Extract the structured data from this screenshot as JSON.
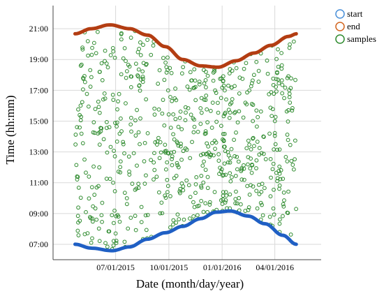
{
  "chart_data": {
    "type": "scatter",
    "title": "",
    "xlabel": "Date (month/day/year)",
    "ylabel": "Time (hh:mm)",
    "xlim": [
      "2015-03-15",
      "2016-06-20"
    ],
    "ylim": [
      "06:00",
      "22:30"
    ],
    "x_ticks": [
      {
        "date": "2015-03-01",
        "label": ""
      },
      {
        "date": "2015-07-01",
        "label": "07/01/2015"
      },
      {
        "date": "2015-10-01",
        "label": "10/01/2015"
      },
      {
        "date": "2016-01-01",
        "label": "01/01/2016"
      },
      {
        "date": "2016-04-01",
        "label": "04/01/2016"
      }
    ],
    "y_ticks": [
      "07:00",
      "09:00",
      "11:00",
      "13:00",
      "15:00",
      "17:00",
      "19:00",
      "21:00"
    ],
    "grid": true,
    "legend_position": "top-right",
    "series": [
      {
        "name": "start",
        "marker_color": "#4a90d9",
        "line_color": "#1f5fc4",
        "x": [
          "2015-04-22",
          "2015-05-20",
          "2015-06-25",
          "2015-07-25",
          "2015-08-25",
          "2015-09-25",
          "2015-10-25",
          "2015-11-25",
          "2015-12-21",
          "2016-01-15",
          "2016-02-15",
          "2016-03-15",
          "2016-04-15",
          "2016-05-08"
        ],
        "y": [
          "07:00",
          "06:45",
          "06:35",
          "06:50",
          "07:20",
          "07:45",
          "08:10",
          "08:40",
          "09:05",
          "09:10",
          "08:50",
          "08:20",
          "07:35",
          "07:00"
        ]
      },
      {
        "name": "end",
        "marker_color": "#d2651f",
        "line_color": "#b33d12",
        "x": [
          "2015-04-22",
          "2015-05-20",
          "2015-06-21",
          "2015-07-25",
          "2015-08-25",
          "2015-09-25",
          "2015-10-25",
          "2015-11-25",
          "2015-12-25",
          "2016-01-25",
          "2016-02-25",
          "2016-03-25",
          "2016-04-25",
          "2016-05-08"
        ],
        "y": [
          "20:40",
          "21:00",
          "21:15",
          "21:00",
          "20:35",
          "19:50",
          "19:00",
          "18:35",
          "18:30",
          "18:55",
          "19:25",
          "19:55",
          "20:30",
          "20:40"
        ]
      },
      {
        "name": "samples",
        "marker_color": "#2e8b2e",
        "values_shown": "scattered points between the start and end curves"
      }
    ]
  }
}
